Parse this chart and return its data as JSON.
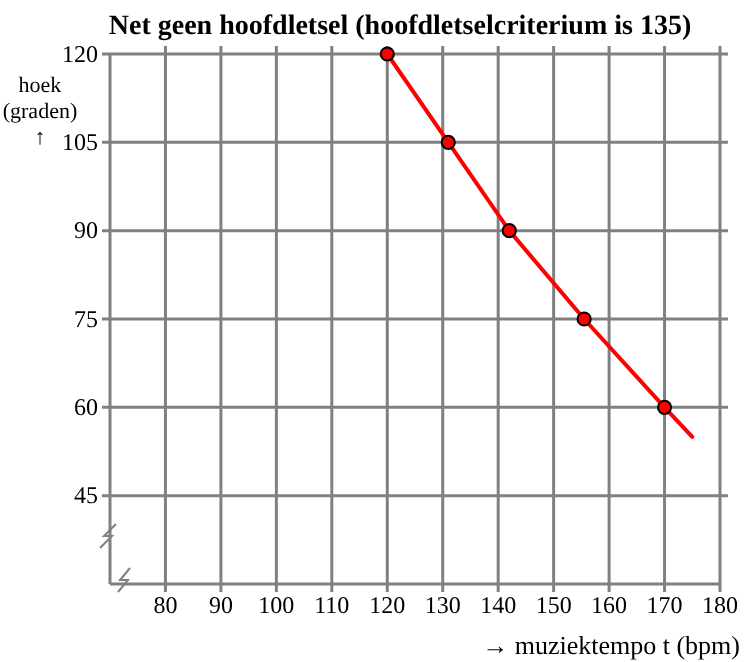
{
  "chart_data": {
    "type": "line",
    "title": "Net geen hoofdletsel (hoofdletselcriterium is 135)",
    "xlabel": "→ muziektempo t (bpm)",
    "ylabel": "hoek (graden) ↑",
    "series": [
      {
        "color": "#ff0000",
        "x": [
          120,
          131,
          142,
          155.5,
          170,
          175
        ],
        "values": [
          120,
          105,
          90,
          75,
          60,
          55
        ],
        "marker": "none"
      },
      {
        "type": "scatter",
        "color": "#ff0000",
        "x": [
          120,
          131,
          142,
          155.5,
          170
        ],
        "values": [
          120,
          105,
          90,
          75,
          60
        ],
        "marker": "circle"
      }
    ],
    "xlim": [
      70,
      180
    ],
    "xticks": [
      80,
      90,
      100,
      110,
      120,
      130,
      140,
      150,
      160,
      170,
      180
    ],
    "ylim": [
      30,
      120
    ],
    "yticks": [
      45,
      60,
      75,
      90,
      105,
      120
    ],
    "grid": true
  }
}
